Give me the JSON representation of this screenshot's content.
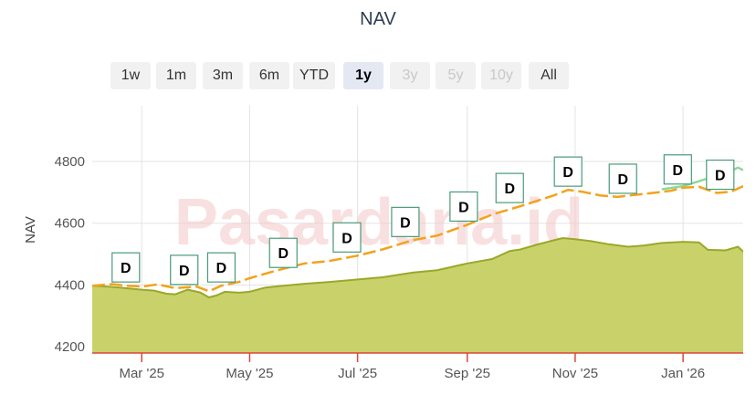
{
  "chart": {
    "title": "NAV",
    "watermark": "Pasardana.id",
    "range_buttons": [
      {
        "label": "1w",
        "state": "normal"
      },
      {
        "label": "1m",
        "state": "normal"
      },
      {
        "label": "3m",
        "state": "normal"
      },
      {
        "label": "6m",
        "state": "normal"
      },
      {
        "label": "YTD",
        "state": "normal"
      },
      {
        "label": "1y",
        "state": "active"
      },
      {
        "label": "3y",
        "state": "disabled"
      },
      {
        "label": "5y",
        "state": "disabled"
      },
      {
        "label": "10y",
        "state": "disabled"
      },
      {
        "label": "All",
        "state": "normal"
      }
    ],
    "flag_label": "D"
  },
  "colors": {
    "area_fill": "#c9d26a",
    "area_line": "#9aa82a",
    "orange_line": "#f2a21c",
    "green_line": "#8fd89a",
    "flag_border": "#4a9a78",
    "axis_line": "#d9483b"
  },
  "chart_data": {
    "type": "area",
    "title": "NAV",
    "xlabel": "",
    "ylabel": "NAV",
    "ylim": [
      4180,
      4980
    ],
    "yticks": [
      4200,
      4400,
      4600,
      4800
    ],
    "x_start": "2025-02-01",
    "x_end": "2026-02-04",
    "xticks": [
      {
        "date": "2025-03-01",
        "label": "Mar '25"
      },
      {
        "date": "2025-05-01",
        "label": "May '25"
      },
      {
        "date": "2025-07-01",
        "label": "Jul '25"
      },
      {
        "date": "2025-09-01",
        "label": "Sep '25"
      },
      {
        "date": "2025-11-01",
        "label": "Nov '25"
      },
      {
        "date": "2026-01-01",
        "label": "Jan '26"
      }
    ],
    "grid": true,
    "series": [
      {
        "type": "area",
        "points": [
          [
            "2025-02-01",
            4398
          ],
          [
            "2025-02-12",
            4394
          ],
          [
            "2025-02-20",
            4390
          ],
          [
            "2025-03-01",
            4385
          ],
          [
            "2025-03-08",
            4382
          ],
          [
            "2025-03-15",
            4372
          ],
          [
            "2025-03-20",
            4370
          ],
          [
            "2025-03-27",
            4385
          ],
          [
            "2025-04-03",
            4376
          ],
          [
            "2025-04-08",
            4360
          ],
          [
            "2025-04-12",
            4366
          ],
          [
            "2025-04-17",
            4378
          ],
          [
            "2025-04-25",
            4375
          ],
          [
            "2025-05-01",
            4378
          ],
          [
            "2025-05-10",
            4392
          ],
          [
            "2025-05-20",
            4398
          ],
          [
            "2025-06-01",
            4404
          ],
          [
            "2025-06-15",
            4410
          ],
          [
            "2025-07-01",
            4418
          ],
          [
            "2025-07-15",
            4425
          ],
          [
            "2025-08-01",
            4440
          ],
          [
            "2025-08-15",
            4448
          ],
          [
            "2025-09-01",
            4470
          ],
          [
            "2025-09-15",
            4484
          ],
          [
            "2025-09-25",
            4510
          ],
          [
            "2025-10-01",
            4515
          ],
          [
            "2025-10-10",
            4530
          ],
          [
            "2025-10-20",
            4545
          ],
          [
            "2025-10-25",
            4552
          ],
          [
            "2025-11-01",
            4548
          ],
          [
            "2025-11-10",
            4542
          ],
          [
            "2025-11-20",
            4532
          ],
          [
            "2025-12-01",
            4524
          ],
          [
            "2025-12-10",
            4528
          ],
          [
            "2025-12-20",
            4536
          ],
          [
            "2026-01-01",
            4540
          ],
          [
            "2026-01-10",
            4538
          ],
          [
            "2026-01-15",
            4514
          ],
          [
            "2026-01-25",
            4512
          ],
          [
            "2026-02-01",
            4524
          ],
          [
            "2026-02-04",
            4508
          ]
        ]
      },
      {
        "type": "line",
        "points": [
          [
            "2025-02-01",
            4398
          ],
          [
            "2025-02-12",
            4403
          ],
          [
            "2025-02-20",
            4398
          ],
          [
            "2025-03-01",
            4395
          ],
          [
            "2025-03-10",
            4402
          ],
          [
            "2025-03-20",
            4390
          ],
          [
            "2025-04-01",
            4395
          ],
          [
            "2025-04-08",
            4380
          ],
          [
            "2025-04-15",
            4398
          ],
          [
            "2025-04-25",
            4410
          ],
          [
            "2025-05-01",
            4422
          ],
          [
            "2025-05-15",
            4445
          ],
          [
            "2025-06-01",
            4470
          ],
          [
            "2025-06-15",
            4478
          ],
          [
            "2025-07-01",
            4495
          ],
          [
            "2025-07-15",
            4515
          ],
          [
            "2025-08-01",
            4545
          ],
          [
            "2025-08-15",
            4560
          ],
          [
            "2025-09-01",
            4595
          ],
          [
            "2025-09-15",
            4628
          ],
          [
            "2025-10-01",
            4655
          ],
          [
            "2025-10-20",
            4690
          ],
          [
            "2025-10-28",
            4708
          ],
          [
            "2025-11-05",
            4702
          ],
          [
            "2025-11-15",
            4690
          ],
          [
            "2025-11-25",
            4685
          ],
          [
            "2025-12-05",
            4692
          ],
          [
            "2025-12-15",
            4698
          ],
          [
            "2025-12-25",
            4705
          ],
          [
            "2026-01-01",
            4715
          ],
          [
            "2026-01-10",
            4718
          ],
          [
            "2026-01-20",
            4698
          ],
          [
            "2026-01-28",
            4702
          ],
          [
            "2026-02-04",
            4720
          ]
        ]
      },
      {
        "type": "line",
        "points": [
          [
            "2025-12-20",
            4710
          ],
          [
            "2026-01-01",
            4720
          ],
          [
            "2026-01-15",
            4745
          ],
          [
            "2026-01-25",
            4760
          ],
          [
            "2026-02-01",
            4780
          ],
          [
            "2026-02-04",
            4772
          ]
        ]
      }
    ],
    "dividend_flags": [
      {
        "date": "2025-02-20",
        "label": "D"
      },
      {
        "date": "2025-03-25",
        "label": "D"
      },
      {
        "date": "2025-04-15",
        "label": "D"
      },
      {
        "date": "2025-05-20",
        "label": "D"
      },
      {
        "date": "2025-06-25",
        "label": "D"
      },
      {
        "date": "2025-07-28",
        "label": "D"
      },
      {
        "date": "2025-08-30",
        "label": "D"
      },
      {
        "date": "2025-09-25",
        "label": "D"
      },
      {
        "date": "2025-10-28",
        "label": "D"
      },
      {
        "date": "2025-11-28",
        "label": "D"
      },
      {
        "date": "2025-12-29",
        "label": "D"
      },
      {
        "date": "2026-01-22",
        "label": "D"
      }
    ]
  }
}
